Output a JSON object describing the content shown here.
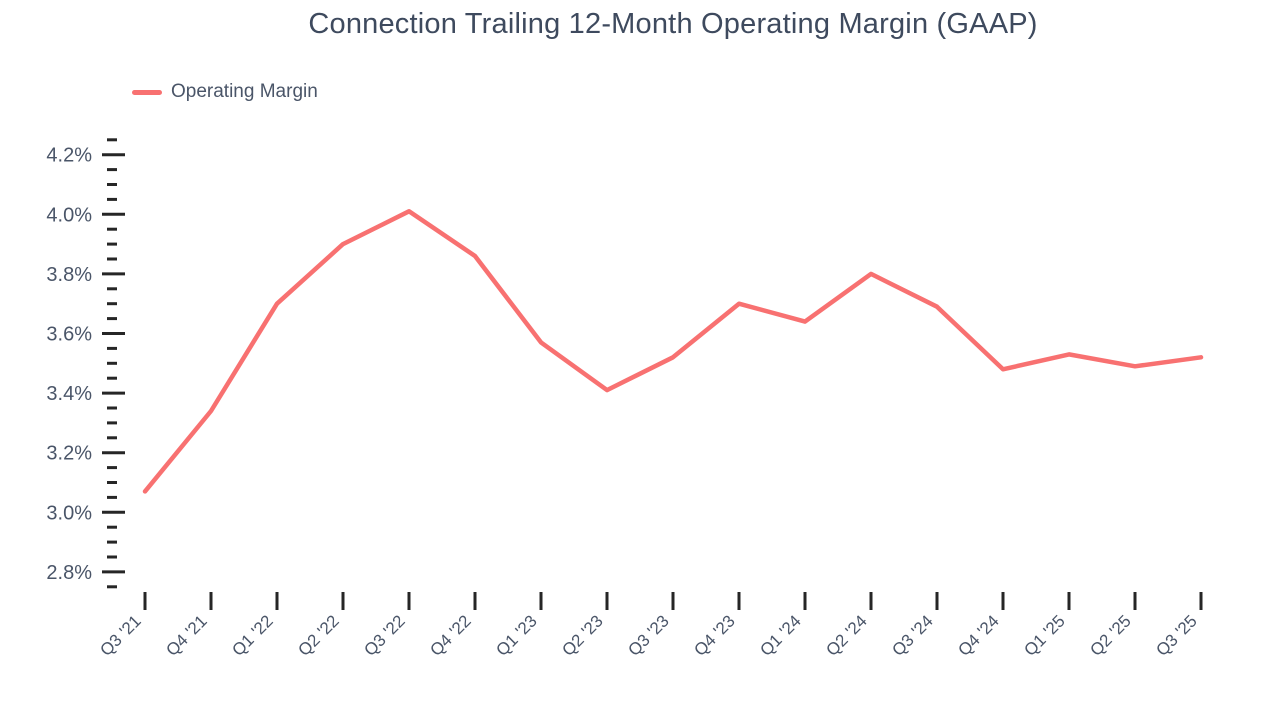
{
  "chart_data": {
    "type": "line",
    "title": "Connection Trailing 12-Month Operating Margin (GAAP)",
    "xlabel": "",
    "ylabel": "",
    "unit": "%",
    "categories": [
      "Q3 '21",
      "Q4 '21",
      "Q1 '22",
      "Q2 '22",
      "Q3 '22",
      "Q4 '22",
      "Q1 '23",
      "Q2 '23",
      "Q3 '23",
      "Q4 '23",
      "Q1 '24",
      "Q2 '24",
      "Q3 '24",
      "Q4 '24",
      "Q1 '25",
      "Q2 '25",
      "Q3 '25"
    ],
    "series": [
      {
        "name": "Operating Margin",
        "color": "#f87171",
        "values": [
          3.07,
          3.34,
          3.7,
          3.9,
          4.01,
          3.86,
          3.57,
          3.41,
          3.52,
          3.7,
          3.64,
          3.8,
          3.69,
          3.48,
          3.53,
          3.49,
          3.52
        ]
      }
    ],
    "ylim": [
      2.75,
      4.25
    ],
    "ytick_values": [
      2.8,
      3.0,
      3.2,
      3.4,
      3.6,
      3.8,
      4.0,
      4.2
    ],
    "ytick_labels": [
      "2.8%",
      "3.0%",
      "3.2%",
      "3.4%",
      "3.6%",
      "3.8%",
      "4.0%",
      "4.2%"
    ],
    "minor_ytick_step": 0.05,
    "grid": false,
    "legend_position": "top-left"
  },
  "legend": {
    "items": [
      {
        "label": "Operating Margin",
        "swatch": "line-swatch"
      }
    ]
  },
  "colors": {
    "line": "#f87171",
    "title_text": "#3e4a5e",
    "axis_text": "#4a5568",
    "tick_marks": "#262626",
    "background": "#ffffff"
  }
}
